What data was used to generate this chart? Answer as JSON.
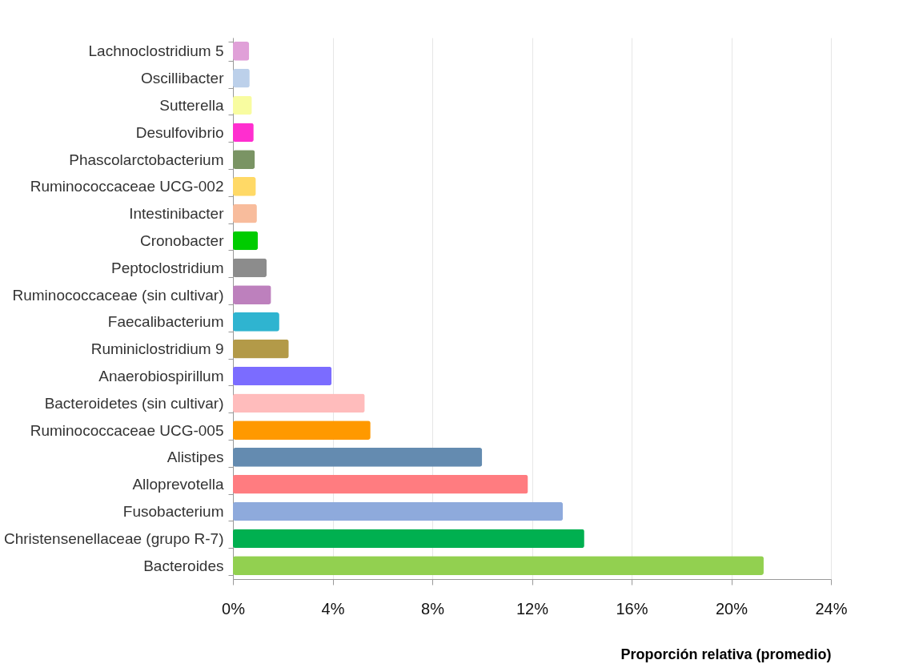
{
  "chart_data": {
    "type": "bar",
    "orientation": "horizontal",
    "xlabel": "Proporción relativa (promedio)",
    "categories": [
      "Lachnoclostridium 5",
      "Oscillibacter",
      "Sutterella",
      "Desulfovibrio",
      "Phascolarctobacterium",
      "Ruminococcaceae UCG-002",
      "Intestinibacter",
      "Cronobacter",
      "Peptoclostridium",
      "Ruminococcaceae (sin cultivar)",
      "Faecalibacterium",
      "Ruminiclostridium 9",
      "Anaerobiospirillum",
      "Bacteroidetes (sin cultivar)",
      "Ruminococcaceae UCG-005",
      "Alistipes",
      "Alloprevotella",
      "Fusobacterium",
      "Christensenellaceae (grupo R-7)",
      "Bacteroides"
    ],
    "values": [
      0.65,
      0.67,
      0.76,
      0.83,
      0.88,
      0.92,
      0.96,
      1.0,
      1.35,
      1.53,
      1.86,
      2.24,
      3.96,
      5.29,
      5.52,
      10.0,
      11.84,
      13.24,
      14.1,
      21.3
    ],
    "colors": [
      "#e0a0d8",
      "#bcd0ea",
      "#f8fca0",
      "#ff2ecf",
      "#7a9464",
      "#ffd966",
      "#f8bc9c",
      "#00cc00",
      "#8c8c8c",
      "#bd80bd",
      "#2fb4d0",
      "#b39a48",
      "#7b6cff",
      "#ffbcbc",
      "#ff9900",
      "#648bb0",
      "#ff7c80",
      "#8eaadc",
      "#00b050",
      "#92d050"
    ],
    "xlim": [
      0,
      24
    ],
    "xticks": [
      {
        "value": 0,
        "label": "0%"
      },
      {
        "value": 4,
        "label": "4%"
      },
      {
        "value": 8,
        "label": "8%"
      },
      {
        "value": 12,
        "label": "12%"
      },
      {
        "value": 16,
        "label": "16%"
      },
      {
        "value": 20,
        "label": "20%"
      },
      {
        "value": 24,
        "label": "24%"
      }
    ],
    "grid": "x"
  }
}
